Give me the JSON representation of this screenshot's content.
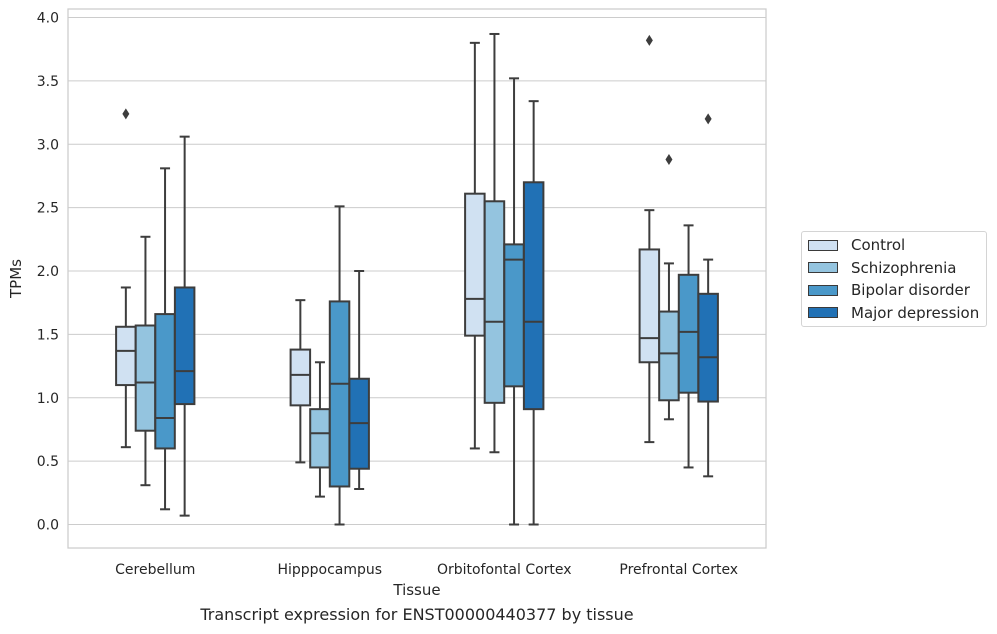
{
  "caption": "Transcript expression for ENST00000440377 by tissue",
  "chart_data": {
    "type": "box",
    "xlabel": "Tissue",
    "ylabel": "TPMs",
    "ylim": [
      -0.18,
      4.07
    ],
    "yticks": [
      "0.0",
      "0.5",
      "1.0",
      "1.5",
      "2.0",
      "2.5",
      "3.0",
      "3.5",
      "4.0"
    ],
    "grid": true,
    "legend_position": "right",
    "categories": [
      "Cerebellum",
      "Hipppocampus",
      "Orbitofontal Cortex",
      "Prefrontal Cortex"
    ],
    "series": [
      {
        "name": "Control",
        "color": "#d0e1f2",
        "boxes": [
          {
            "whisker_low": 0.61,
            "q1": 1.1,
            "median": 1.37,
            "q3": 1.56,
            "whisker_high": 1.87,
            "outliers": [
              3.24
            ]
          },
          {
            "whisker_low": 0.49,
            "q1": 0.94,
            "median": 1.18,
            "q3": 1.38,
            "whisker_high": 1.77,
            "outliers": []
          },
          {
            "whisker_low": 0.6,
            "q1": 1.49,
            "median": 1.78,
            "q3": 2.61,
            "whisker_high": 3.8,
            "outliers": []
          },
          {
            "whisker_low": 0.65,
            "q1": 1.28,
            "median": 1.47,
            "q3": 2.17,
            "whisker_high": 2.48,
            "outliers": [
              3.82
            ]
          }
        ]
      },
      {
        "name": "Schizophrenia",
        "color": "#94c4df",
        "boxes": [
          {
            "whisker_low": 0.31,
            "q1": 0.74,
            "median": 1.12,
            "q3": 1.57,
            "whisker_high": 2.27,
            "outliers": []
          },
          {
            "whisker_low": 0.22,
            "q1": 0.45,
            "median": 0.72,
            "q3": 0.91,
            "whisker_high": 1.28,
            "outliers": []
          },
          {
            "whisker_low": 0.57,
            "q1": 0.96,
            "median": 1.6,
            "q3": 2.55,
            "whisker_high": 3.87,
            "outliers": []
          },
          {
            "whisker_low": 0.83,
            "q1": 0.98,
            "median": 1.35,
            "q3": 1.68,
            "whisker_high": 2.06,
            "outliers": [
              2.88
            ]
          }
        ]
      },
      {
        "name": "Bipolar disorder",
        "color": "#4a98c9",
        "boxes": [
          {
            "whisker_low": 0.12,
            "q1": 0.6,
            "median": 0.84,
            "q3": 1.66,
            "whisker_high": 2.81,
            "outliers": []
          },
          {
            "whisker_low": 0.0,
            "q1": 0.3,
            "median": 1.11,
            "q3": 1.76,
            "whisker_high": 2.51,
            "outliers": []
          },
          {
            "whisker_low": 0.0,
            "q1": 1.09,
            "median": 2.09,
            "q3": 2.21,
            "whisker_high": 3.52,
            "outliers": []
          },
          {
            "whisker_low": 0.45,
            "q1": 1.04,
            "median": 1.52,
            "q3": 1.97,
            "whisker_high": 2.36,
            "outliers": []
          }
        ]
      },
      {
        "name": "Major depression",
        "color": "#2171b5",
        "boxes": [
          {
            "whisker_low": 0.07,
            "q1": 0.95,
            "median": 1.21,
            "q3": 1.87,
            "whisker_high": 3.06,
            "outliers": []
          },
          {
            "whisker_low": 0.28,
            "q1": 0.44,
            "median": 0.8,
            "q3": 1.15,
            "whisker_high": 2.0,
            "outliers": []
          },
          {
            "whisker_low": 0.0,
            "q1": 0.91,
            "median": 1.6,
            "q3": 2.7,
            "whisker_high": 3.34,
            "outliers": []
          },
          {
            "whisker_low": 0.38,
            "q1": 0.97,
            "median": 1.32,
            "q3": 1.82,
            "whisker_high": 2.09,
            "outliers": [
              3.2
            ]
          }
        ]
      }
    ]
  }
}
